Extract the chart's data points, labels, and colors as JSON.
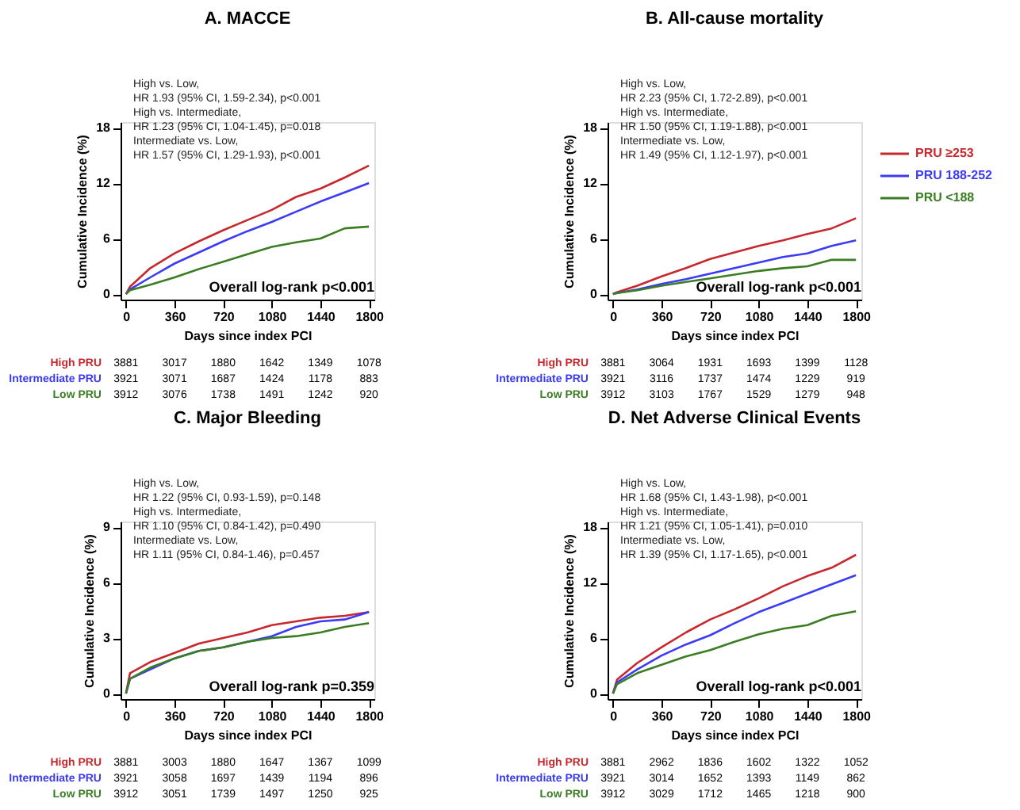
{
  "chart_data": [
    {
      "type": "line",
      "title": "A. MACCE",
      "xlabel": "Days since index PCI",
      "ylabel": "Cumulative Incidence (%)",
      "x": [
        0,
        30,
        180,
        360,
        540,
        720,
        900,
        1080,
        1260,
        1440,
        1620,
        1800
      ],
      "series": [
        {
          "color": "#c8282d",
          "values": [
            0,
            0.8,
            2.8,
            4.4,
            5.7,
            6.9,
            8.0,
            9.1,
            10.5,
            11.4,
            12.6,
            13.9
          ]
        },
        {
          "color": "#3b3bf5",
          "values": [
            0,
            0.5,
            1.8,
            3.3,
            4.5,
            5.7,
            6.8,
            7.8,
            8.9,
            10.0,
            11.0,
            12.0
          ]
        },
        {
          "color": "#3a7d22",
          "values": [
            0,
            0.4,
            1.0,
            1.8,
            2.7,
            3.5,
            4.3,
            5.1,
            5.6,
            6.0,
            7.1,
            7.3
          ]
        }
      ],
      "xlim": [
        -40,
        1840
      ],
      "xticks": [
        0,
        360,
        720,
        1080,
        1440,
        1800
      ],
      "ylim": [
        -0.6,
        18.6
      ],
      "yticks": [
        0,
        6,
        12,
        18
      ],
      "grid": false,
      "legend": false,
      "annotations": [
        "High vs. Low,",
        "HR 1.93 (95% CI, 1.59-2.34), p<0.001",
        "High vs. Intermediate,",
        "HR 1.23 (95% CI, 1.04-1.45), p=0.018",
        "Intermediate vs. Low,",
        "HR 1.57 (95% CI, 1.29-1.93), p<0.001",
        "Overall log-rank p<0.001",
        "High PRU",
        "Intermediate PRU",
        "Low PRU",
        "3881 3017 1880 1642 1349 1078",
        "3921 3071 1687 1424 1178 883",
        "3912 3076 1738 1491 1242 920"
      ]
    },
    {
      "type": "line",
      "title": "B. All-cause mortality",
      "xlabel": "Days since index PCI",
      "ylabel": "Cumulative Incidence (%)",
      "x": [
        0,
        30,
        180,
        360,
        540,
        720,
        900,
        1080,
        1260,
        1440,
        1620,
        1800
      ],
      "series": [
        {
          "name": "PRU ≥253",
          "color": "#c8282d",
          "values": [
            0,
            0.2,
            0.9,
            1.9,
            2.8,
            3.8,
            4.5,
            5.2,
            5.8,
            6.5,
            7.1,
            8.2
          ]
        },
        {
          "name": "PRU 188-252",
          "color": "#3b3bf5",
          "values": [
            0,
            0.1,
            0.5,
            1.1,
            1.6,
            2.2,
            2.8,
            3.4,
            4.0,
            4.4,
            5.2,
            5.8
          ]
        },
        {
          "name": "PRU <188",
          "color": "#3a7d22",
          "values": [
            0,
            0.1,
            0.4,
            0.9,
            1.3,
            1.7,
            2.1,
            2.5,
            2.8,
            3.0,
            3.7,
            3.7
          ]
        }
      ],
      "xlim": [
        -40,
        1840
      ],
      "xticks": [
        0,
        360,
        720,
        1080,
        1440,
        1800
      ],
      "ylim": [
        -0.6,
        18.6
      ],
      "yticks": [
        0,
        6,
        12,
        18
      ],
      "grid": false,
      "legend": "right",
      "annotations": [
        "High vs. Low,",
        "HR 2.23 (95% CI, 1.72-2.89), p<0.001",
        "High vs. Intermediate,",
        "HR 1.50 (95% CI, 1.19-1.88), p<0.001",
        "Intermediate vs. Low,",
        "HR 1.49 (95% CI, 1.12-1.97), p<0.001",
        "Overall log-rank p<0.001",
        "High PRU",
        "Intermediate PRU",
        "Low PRU",
        "3881 3064 1931 1693 1399 1128",
        "3921 3116 1737 1474 1229 919",
        "3912 3103 1767 1529 1279 948"
      ]
    },
    {
      "type": "line",
      "title": "C. Major Bleeding",
      "xlabel": "Days since index PCI",
      "ylabel": "Cumulative Incidence (%)",
      "x": [
        0,
        30,
        180,
        360,
        540,
        720,
        900,
        1080,
        1260,
        1440,
        1620,
        1800
      ],
      "series": [
        {
          "color": "#c8282d",
          "values": [
            0,
            1.1,
            1.7,
            2.2,
            2.7,
            3.0,
            3.3,
            3.7,
            3.9,
            4.1,
            4.2,
            4.4
          ]
        },
        {
          "color": "#3b3bf5",
          "values": [
            0,
            0.8,
            1.3,
            1.9,
            2.3,
            2.5,
            2.8,
            3.1,
            3.6,
            3.9,
            4.0,
            4.4
          ]
        },
        {
          "color": "#3a7d22",
          "values": [
            0,
            0.8,
            1.4,
            1.9,
            2.3,
            2.5,
            2.8,
            3.0,
            3.1,
            3.3,
            3.6,
            3.8
          ]
        }
      ],
      "xlim": [
        -40,
        1840
      ],
      "xticks": [
        0,
        360,
        720,
        1080,
        1440,
        1800
      ],
      "ylim": [
        -0.3,
        9.3
      ],
      "yticks": [
        0,
        3,
        6,
        9
      ],
      "grid": false,
      "legend": false,
      "annotations": [
        "High vs. Low,",
        "HR 1.22 (95% CI, 0.93-1.59), p=0.148",
        "High vs. Intermediate,",
        "HR 1.10 (95% CI, 0.84-1.42), p=0.490",
        "Intermediate vs. Low,",
        "HR 1.11 (95% CI, 0.84-1.46), p=0.457",
        "Overall log-rank p=0.359",
        "High PRU",
        "Intermediate PRU",
        "Low PRU",
        "3881 3003 1880 1647 1367 1099",
        "3921 3058 1697 1439 1194 896",
        "3912 3051 1739 1497 1250 925"
      ]
    },
    {
      "type": "line",
      "title": "D. Net Adverse Clinical Events",
      "xlabel": "Days since index PCI",
      "ylabel": "Cumulative Incidence (%)",
      "x": [
        0,
        30,
        180,
        360,
        540,
        720,
        900,
        1080,
        1260,
        1440,
        1620,
        1800
      ],
      "series": [
        {
          "color": "#c8282d",
          "values": [
            0,
            1.5,
            3.3,
            5.0,
            6.6,
            8.0,
            9.1,
            10.3,
            11.6,
            12.7,
            13.6,
            15.0
          ]
        },
        {
          "color": "#3b3bf5",
          "values": [
            0,
            1.2,
            2.6,
            4.1,
            5.3,
            6.3,
            7.6,
            8.8,
            9.8,
            10.8,
            11.8,
            12.8
          ]
        },
        {
          "color": "#3a7d22",
          "values": [
            0,
            1.0,
            2.2,
            3.1,
            4.0,
            4.7,
            5.6,
            6.4,
            7.0,
            7.4,
            8.4,
            8.9
          ]
        }
      ],
      "xlim": [
        -40,
        1840
      ],
      "xticks": [
        0,
        360,
        720,
        1080,
        1440,
        1800
      ],
      "ylim": [
        -0.6,
        18.6
      ],
      "yticks": [
        0,
        6,
        12,
        18
      ],
      "grid": false,
      "legend": false,
      "annotations": [
        "High vs. Low,",
        "HR 1.68 (95% CI, 1.43-1.98), p<0.001",
        "High vs. Intermediate,",
        "HR 1.21 (95% CI, 1.05-1.41), p=0.010",
        "Intermediate vs. Low,",
        "HR 1.39 (95% CI, 1.17-1.65), p<0.001",
        "Overall log-rank p<0.001",
        "High PRU",
        "Intermediate PRU",
        "Low PRU",
        "3881 2962 1836 1602 1322 1052",
        "3921 3014 1652 1393 1149 862",
        "3912 3029 1712 1465 1218 900"
      ]
    }
  ]
}
